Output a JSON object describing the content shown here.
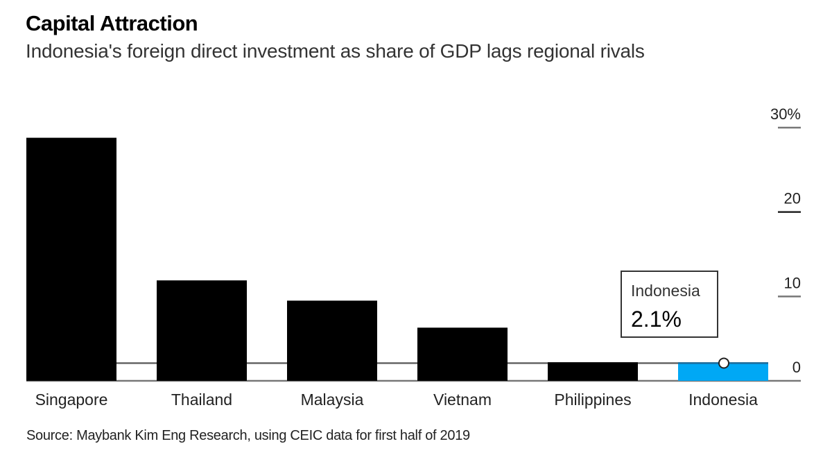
{
  "chart_data": {
    "type": "bar",
    "title": "Capital Attraction",
    "subtitle": "Indonesia's foreign direct investment as share of GDP lags regional rivals",
    "categories": [
      "Singapore",
      "Thailand",
      "Malaysia",
      "Vietnam",
      "Philippines",
      "Indonesia"
    ],
    "values": [
      28.8,
      11.9,
      9.5,
      6.3,
      2.2,
      2.1
    ],
    "unit": "% of GDP",
    "xlabel": "",
    "ylabel": "",
    "ylim": [
      0,
      30
    ],
    "yticks": [
      {
        "value": 0,
        "label": "0"
      },
      {
        "value": 10,
        "label": "10"
      },
      {
        "value": 20,
        "label": "20"
      },
      {
        "value": 30,
        "label": "30%"
      }
    ],
    "y_axis_side": "right",
    "grid": false,
    "highlight": {
      "category": "Indonesia",
      "value": 2.1,
      "reference_line": true,
      "callout_name": "Indonesia",
      "callout_value": "2.1%"
    },
    "colors": {
      "bar": "#000000",
      "highlight_bar": "#00a8f5",
      "reference_line": "#666666",
      "baseline": "#777777"
    },
    "source": "Source: Maybank Kim Eng Research, using CEIC data for first half of 2019"
  }
}
